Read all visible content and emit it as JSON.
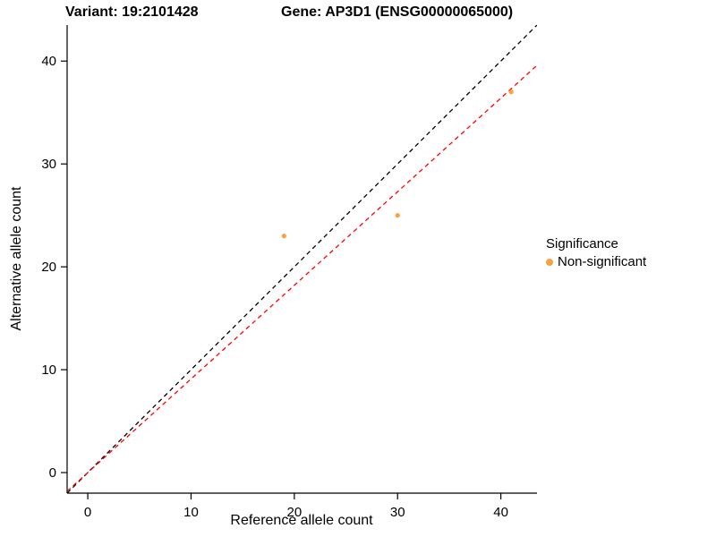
{
  "chart_data": {
    "type": "scatter",
    "titles": {
      "variant": "Variant: 19:2101428",
      "gene": "Gene: AP3D1 (ENSG00000065000)"
    },
    "xlabel": "Reference allele count",
    "ylabel": "Alternative allele count",
    "xlim": [
      -2,
      43.5
    ],
    "ylim": [
      -2,
      43.5
    ],
    "xticks": [
      0,
      10,
      20,
      30,
      40
    ],
    "yticks": [
      0,
      10,
      20,
      30,
      40
    ],
    "grid": false,
    "point_color": "#F9A242",
    "points": [
      {
        "x": 19,
        "y": 23,
        "series": "Non-significant"
      },
      {
        "x": 30,
        "y": 25,
        "series": "Non-significant"
      },
      {
        "x": 41,
        "y": 37,
        "series": "Non-significant"
      }
    ],
    "lines": [
      {
        "name": "identity-line",
        "slope": 1,
        "intercept": 0,
        "color": "#000000",
        "style": "dashed"
      },
      {
        "name": "fitted-line",
        "slope": 0.91,
        "intercept": 0,
        "color": "#FF0000",
        "style": "dashed"
      }
    ],
    "legend": {
      "title": "Significance",
      "position": "right",
      "items": [
        {
          "label": "Non-significant",
          "color": "#F9A242"
        }
      ]
    }
  }
}
